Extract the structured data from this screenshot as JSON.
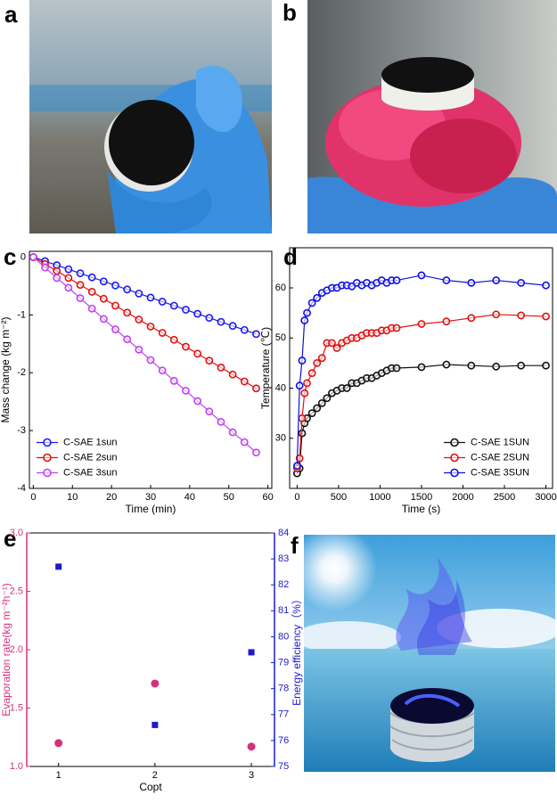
{
  "photo_labels": [
    "a",
    "b",
    "f"
  ],
  "chart_data": [
    {
      "type": "line",
      "panel_label": "c",
      "xlabel": "Time (min)",
      "ylabel": "Mass change (kg m⁻²)",
      "xlim": [
        -1,
        61
      ],
      "ylim": [
        -4,
        0.1
      ],
      "xticks": [
        0,
        10,
        20,
        30,
        40,
        50,
        60
      ],
      "yticks": [
        0,
        -1,
        -2,
        -3,
        -4
      ],
      "legend": "lower left",
      "x": [
        0,
        3,
        6,
        9,
        12,
        15,
        18,
        21,
        24,
        27,
        30,
        33,
        36,
        39,
        42,
        45,
        48,
        51,
        54,
        57
      ],
      "series": [
        {
          "name": "C-SAE 1sun",
          "color": "#1a1aee",
          "values": [
            0,
            -0.07,
            -0.14,
            -0.21,
            -0.28,
            -0.35,
            -0.42,
            -0.49,
            -0.56,
            -0.63,
            -0.7,
            -0.77,
            -0.84,
            -0.91,
            -0.98,
            -1.05,
            -1.12,
            -1.19,
            -1.26,
            -1.33
          ]
        },
        {
          "name": "C-SAE 2sun",
          "color": "#e01010",
          "values": [
            0,
            -0.12,
            -0.24,
            -0.36,
            -0.48,
            -0.6,
            -0.72,
            -0.84,
            -0.96,
            -1.08,
            -1.2,
            -1.31,
            -1.43,
            -1.55,
            -1.67,
            -1.79,
            -1.91,
            -2.03,
            -2.15,
            -2.27
          ]
        },
        {
          "name": "C-SAE 3sun",
          "color": "#c040f0",
          "values": [
            0,
            -0.18,
            -0.36,
            -0.53,
            -0.71,
            -0.89,
            -1.07,
            -1.25,
            -1.42,
            -1.6,
            -1.78,
            -1.96,
            -2.14,
            -2.31,
            -2.49,
            -2.67,
            -2.85,
            -3.03,
            -3.2,
            -3.38
          ]
        }
      ]
    },
    {
      "type": "line",
      "panel_label": "d",
      "xlabel": "Time (s)",
      "ylabel": "Temperature (℃)",
      "xlim": [
        -90,
        3080
      ],
      "ylim": [
        20,
        68
      ],
      "xticks": [
        0,
        500,
        1000,
        1500,
        2000,
        2500,
        3000
      ],
      "yticks": [
        30,
        40,
        50,
        60
      ],
      "legend": "lower right",
      "x": [
        0,
        30,
        60,
        90,
        120,
        180,
        240,
        300,
        360,
        420,
        480,
        540,
        600,
        660,
        720,
        780,
        840,
        900,
        960,
        1020,
        1080,
        1140,
        1200,
        1500,
        1800,
        2100,
        2400,
        2700,
        3000
      ],
      "series": [
        {
          "name": "C-SAE  1SUN",
          "color": "#111111",
          "values": [
            23,
            24,
            31,
            33,
            34,
            35,
            36,
            37,
            38,
            39,
            39.5,
            40,
            40,
            41,
            41,
            41.5,
            42,
            42,
            42.5,
            43,
            43.5,
            44,
            44,
            44.2,
            44.7,
            44.5,
            44.3,
            44.5,
            44.5
          ]
        },
        {
          "name": "C-SAE  2SUN",
          "color": "#e01010",
          "values": [
            24,
            26,
            34,
            39,
            41,
            43,
            45,
            46,
            49,
            49,
            48,
            49,
            49.5,
            50,
            50,
            50.5,
            51,
            51,
            51,
            51.5,
            51.5,
            52,
            52,
            52.8,
            53.3,
            54,
            54.7,
            54.5,
            54.3
          ]
        },
        {
          "name": "C-SAE  3SUN",
          "color": "#1010e0",
          "values": [
            24.5,
            40.5,
            45.5,
            53.5,
            55,
            57,
            58,
            59,
            59.5,
            60,
            60,
            60.5,
            60.5,
            60.3,
            61,
            60.5,
            61,
            60.5,
            61,
            61.5,
            61,
            61.5,
            61.5,
            62.5,
            61.5,
            61,
            61.5,
            61,
            60.5
          ]
        }
      ]
    },
    {
      "type": "scatter",
      "panel_label": "e",
      "xlabel": "Copt",
      "ylabel": "Evaporation rate(kg m⁻²h⁻¹)",
      "y2label": "Energy efficiency（%）",
      "xlim": [
        0.67,
        3.24
      ],
      "ylim": [
        1.0,
        3.0
      ],
      "y2lim": [
        75,
        84
      ],
      "xticks": [
        1,
        2,
        3
      ],
      "yticks": [
        {
          "value": 1,
          "label": "1.0"
        },
        1.5,
        {
          "value": 2,
          "label": "2.0"
        },
        2.5,
        {
          "value": 3,
          "label": "3.0"
        }
      ],
      "y2ticks": [
        75,
        76,
        77,
        78,
        79,
        80,
        81,
        82,
        83,
        84
      ],
      "x": [
        1,
        2,
        3
      ],
      "series": [
        {
          "color": "#d6307a",
          "marker": "circle",
          "values": [
            1.2,
            1.71,
            1.17
          ]
        },
        {
          "color": "#1a1ad0",
          "marker": "square",
          "axis": "y2",
          "values": [
            82.7,
            76.6,
            79.4
          ]
        }
      ]
    }
  ]
}
